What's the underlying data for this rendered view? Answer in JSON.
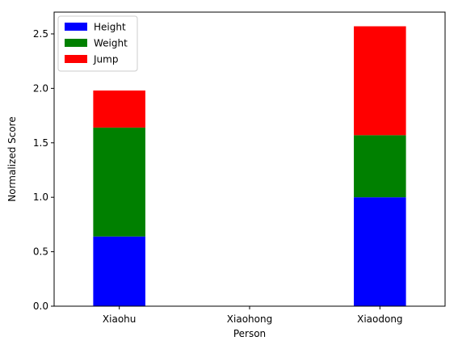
{
  "chart_data": {
    "type": "bar",
    "stacked": true,
    "title": "",
    "xlabel": "Person",
    "ylabel": "Normalized Score",
    "categories": [
      "Xiaohu",
      "Xiaohong",
      "Xiaodong"
    ],
    "series": [
      {
        "name": "Height",
        "color": "#0000ff",
        "values": [
          0.64,
          0.0,
          1.0
        ]
      },
      {
        "name": "Weight",
        "color": "#008000",
        "values": [
          1.0,
          0.0,
          0.57
        ]
      },
      {
        "name": "Jump",
        "color": "#ff0000",
        "values": [
          0.34,
          0.0,
          1.0
        ]
      }
    ],
    "ylim": [
      0,
      2.7
    ],
    "yticks": [
      "0.0",
      "0.5",
      "1.0",
      "1.5",
      "2.0",
      "2.5"
    ],
    "grid": false,
    "legend_position": "top-left"
  }
}
